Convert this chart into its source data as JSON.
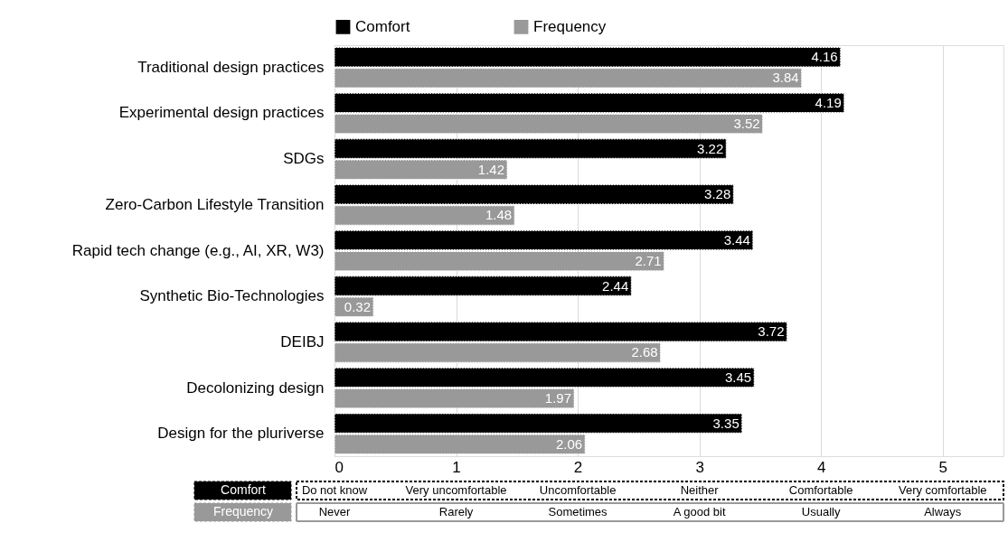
{
  "chart_data": {
    "type": "bar",
    "orientation": "horizontal",
    "categories": [
      "Traditional design practices",
      "Experimental design practices",
      "SDGs",
      "Zero-Carbon Lifestyle Transition",
      "Rapid tech change (e.g., AI, XR, W3)",
      "Synthetic Bio-Technologies",
      "DEIBJ",
      "Decolonizing design",
      "Design for the pluriverse"
    ],
    "series": [
      {
        "name": "Comfort",
        "color": "#000000",
        "values": [
          4.16,
          4.19,
          3.22,
          3.28,
          3.44,
          2.44,
          3.72,
          3.45,
          3.35
        ]
      },
      {
        "name": "Frequency",
        "color": "#999999",
        "values": [
          3.84,
          3.52,
          1.42,
          1.48,
          2.71,
          0.32,
          2.68,
          1.97,
          2.06
        ]
      }
    ],
    "xlim": [
      0,
      5.5
    ],
    "xticks": [
      0,
      1,
      2,
      3,
      4,
      5
    ],
    "data_labels": true,
    "grid": "x",
    "legend": "top",
    "annotations": [
      "Do not know",
      "Very uncomfortable",
      "Uncomfortable",
      "Neither",
      "Comfortable",
      "Very comfortable",
      "Never",
      "Rarely",
      "Sometimes",
      "A good bit",
      "Usually",
      "Always"
    ]
  }
}
